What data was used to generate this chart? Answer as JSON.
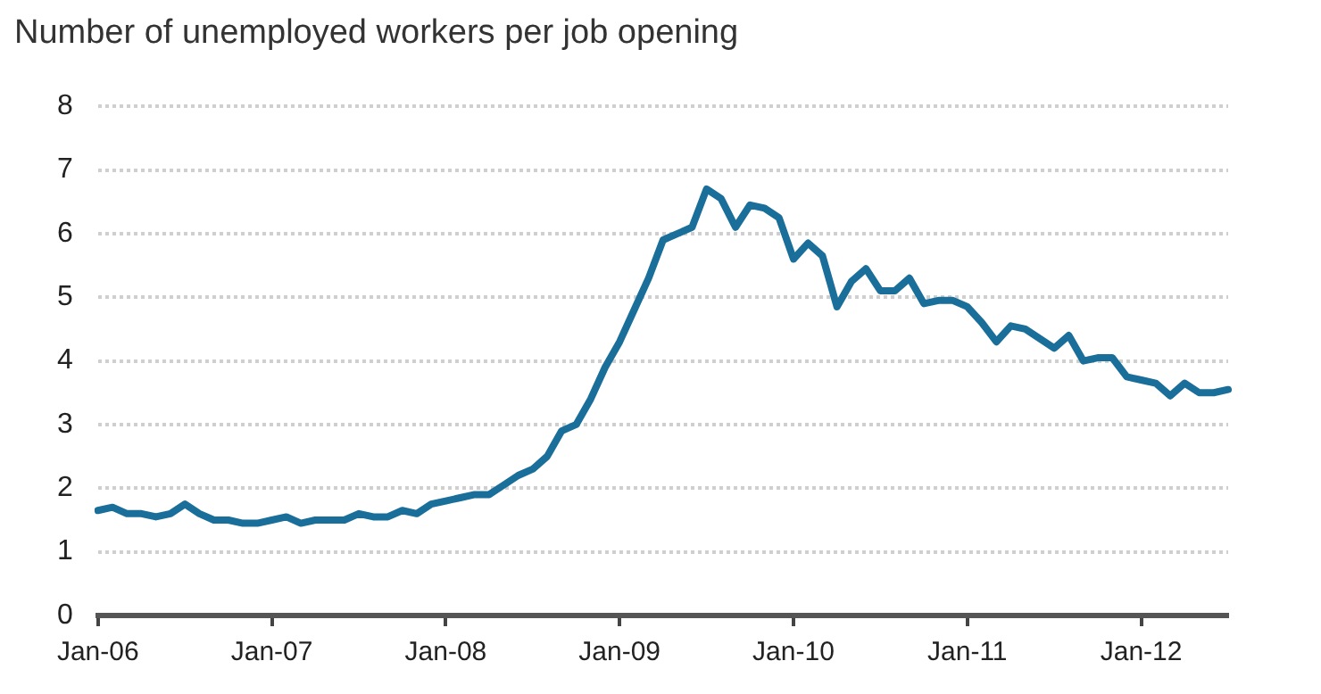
{
  "chart_data": {
    "type": "line",
    "title": "Number of unemployed workers per job opening",
    "categories": [
      "Jan-06",
      null,
      null,
      null,
      null,
      null,
      null,
      null,
      null,
      null,
      null,
      null,
      "Jan-07",
      null,
      null,
      null,
      null,
      null,
      null,
      null,
      null,
      null,
      null,
      null,
      "Jan-08",
      null,
      null,
      null,
      null,
      null,
      null,
      null,
      null,
      null,
      null,
      null,
      "Jan-09",
      null,
      null,
      null,
      null,
      null,
      null,
      null,
      null,
      null,
      null,
      null,
      "Jan-10",
      null,
      null,
      null,
      null,
      null,
      null,
      null,
      null,
      null,
      null,
      null,
      "Jan-11",
      null,
      null,
      null,
      null,
      null,
      null,
      null,
      null,
      null,
      null,
      null,
      "Jan-12",
      null,
      null,
      null,
      null,
      null,
      null
    ],
    "series": [
      {
        "color": "#1a6e9a",
        "values": [
          1.65,
          1.7,
          1.6,
          1.6,
          1.55,
          1.6,
          1.75,
          1.6,
          1.5,
          1.5,
          1.45,
          1.45,
          1.5,
          1.55,
          1.45,
          1.5,
          1.5,
          1.5,
          1.6,
          1.55,
          1.55,
          1.65,
          1.6,
          1.75,
          1.8,
          1.85,
          1.9,
          1.9,
          2.05,
          2.2,
          2.3,
          2.5,
          2.9,
          3.0,
          3.4,
          3.9,
          4.3,
          4.8,
          5.3,
          5.9,
          6.0,
          6.1,
          6.7,
          6.55,
          6.1,
          6.45,
          6.4,
          6.25,
          5.6,
          5.85,
          5.65,
          4.85,
          5.25,
          5.45,
          5.1,
          5.1,
          5.3,
          4.9,
          4.95,
          4.95,
          4.85,
          4.6,
          4.3,
          4.55,
          4.5,
          4.35,
          4.2,
          4.4,
          4.0,
          4.05,
          4.05,
          3.75,
          3.7,
          3.65,
          3.45,
          3.65,
          3.5,
          3.5,
          3.55
        ]
      }
    ],
    "ylim": [
      0,
      8
    ],
    "yticks": [
      0,
      1,
      2,
      3,
      4,
      5,
      6,
      7,
      8
    ],
    "grid": "y",
    "legend": false,
    "marker": "none",
    "line_style": "solid"
  }
}
